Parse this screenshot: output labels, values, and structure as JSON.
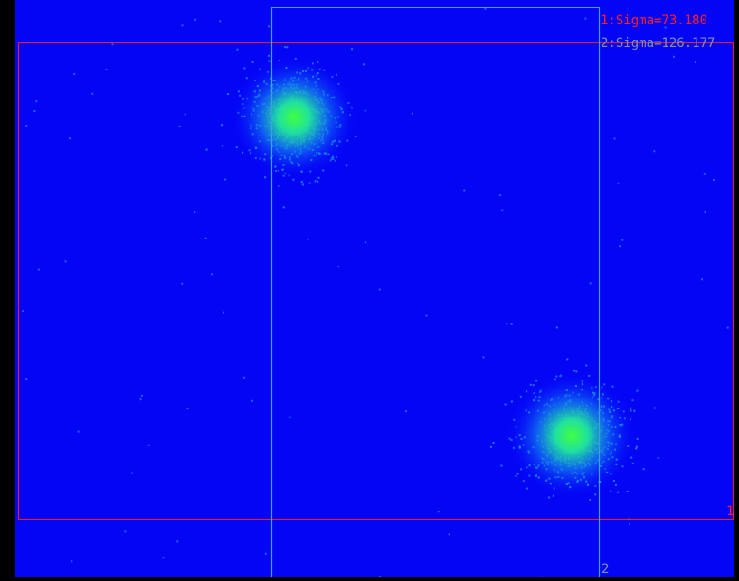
{
  "legend": [
    "1:Sigma=73.180",
    "2:Sigma=126.177"
  ],
  "markers": [
    "1",
    "2"
  ]
}
